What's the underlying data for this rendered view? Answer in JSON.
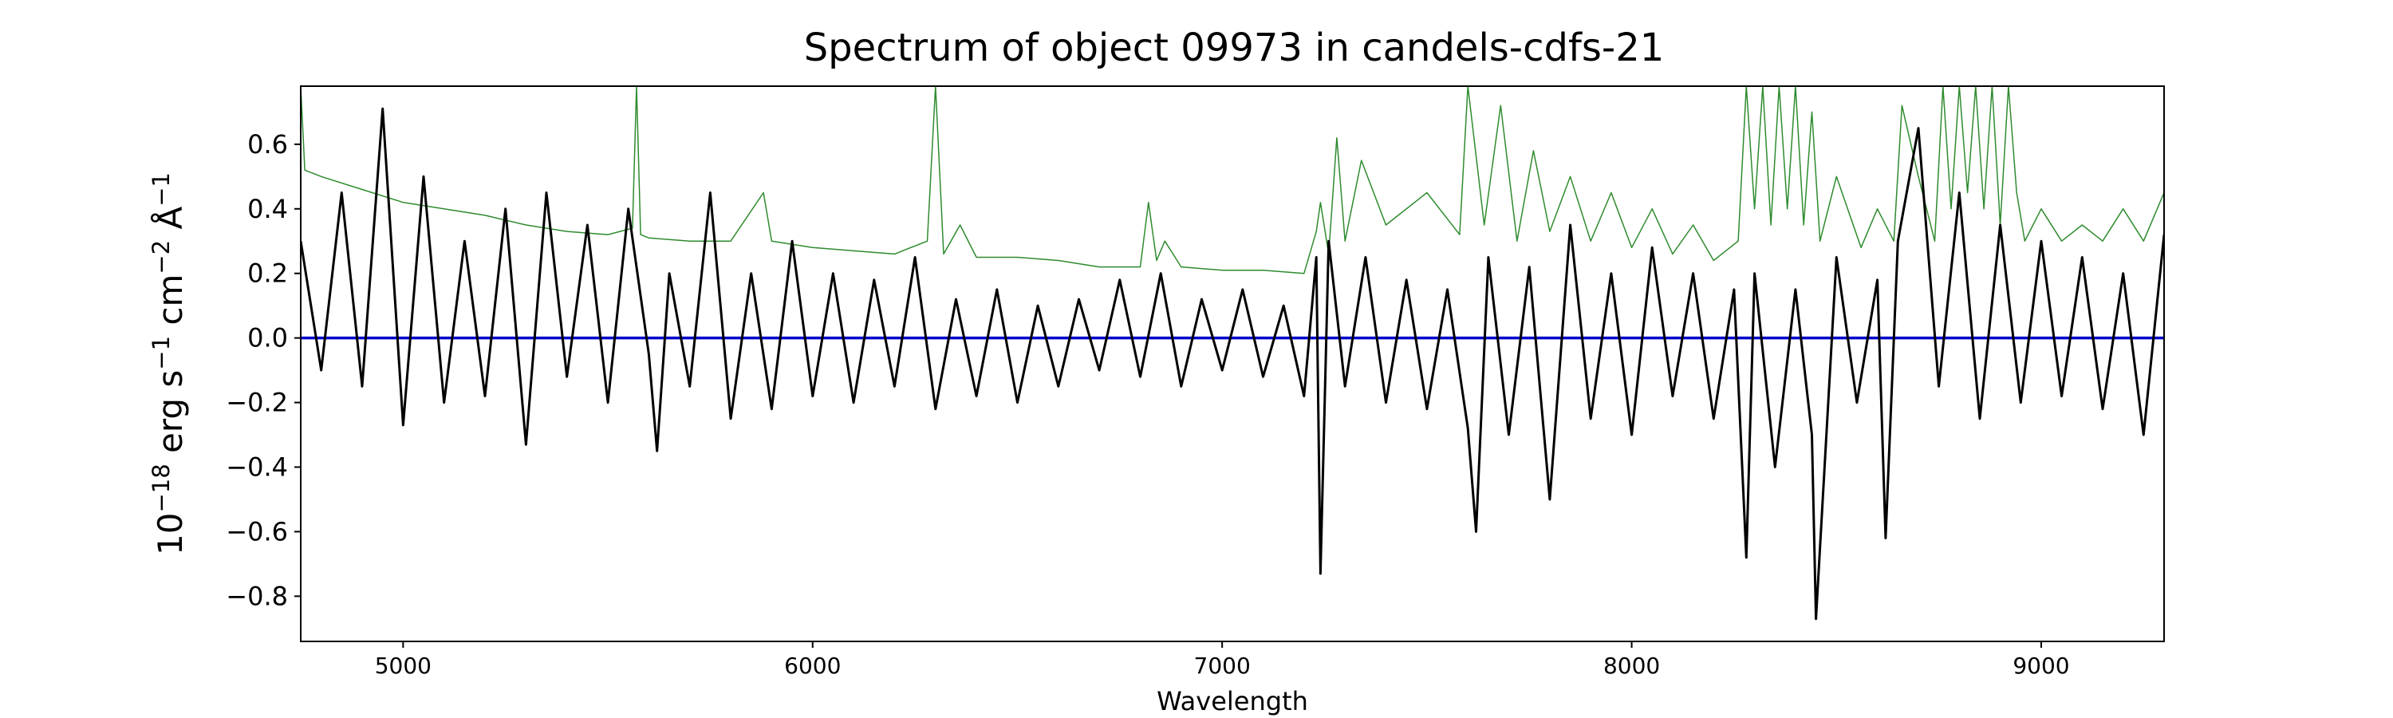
{
  "chart_data": {
    "type": "line",
    "title": "Spectrum of object 09973 in candels-cdfs-21",
    "xlabel": "Wavelength",
    "ylabel_parts": {
      "base": "10",
      "exp1": "−18",
      "unit1": " erg s",
      "exp2": "−1",
      "unit2": " cm",
      "exp3": "−2",
      "unit3": " Å",
      "exp4": "−1"
    },
    "xlim": [
      4750,
      9300
    ],
    "ylim": [
      -0.94,
      0.78
    ],
    "xticks": [
      5000,
      6000,
      7000,
      8000,
      9000
    ],
    "xtick_labels": [
      "5000",
      "6000",
      "7000",
      "8000",
      "9000"
    ],
    "yticks": [
      -0.8,
      -0.6,
      -0.4,
      -0.2,
      0.0,
      0.2,
      0.4,
      0.6
    ],
    "ytick_labels": [
      "−0.8",
      "−0.6",
      "−0.4",
      "−0.2",
      "0.0",
      "0.2",
      "0.4",
      "0.6"
    ],
    "grid": false,
    "series": [
      {
        "role": "zero-line",
        "color": "#0000cc",
        "x": [
          4750,
          9300
        ],
        "y": [
          0.0,
          0.0
        ]
      },
      {
        "role": "noise",
        "color": "#2e8b2e",
        "x": [
          4750,
          4760,
          4800,
          4900,
          5000,
          5200,
          5300,
          5400,
          5500,
          5560,
          5570,
          5580,
          5600,
          5700,
          5800,
          5880,
          5900,
          6000,
          6100,
          6200,
          6280,
          6300,
          6320,
          6360,
          6400,
          6500,
          6600,
          6700,
          6800,
          6820,
          6840,
          6860,
          6880,
          6900,
          7000,
          7100,
          7200,
          7230,
          7240,
          7260,
          7280,
          7300,
          7340,
          7400,
          7500,
          7580,
          7600,
          7640,
          7680,
          7720,
          7760,
          7800,
          7850,
          7900,
          7950,
          8000,
          8050,
          8100,
          8150,
          8200,
          8260,
          8280,
          8300,
          8320,
          8340,
          8360,
          8380,
          8400,
          8420,
          8440,
          8460,
          8500,
          8560,
          8600,
          8640,
          8660,
          8700,
          8740,
          8760,
          8780,
          8800,
          8820,
          8840,
          8860,
          8880,
          8900,
          8920,
          8940,
          8960,
          9000,
          9050,
          9100,
          9150,
          9200,
          9250,
          9300
        ],
        "y": [
          0.78,
          0.52,
          0.5,
          0.46,
          0.42,
          0.38,
          0.35,
          0.33,
          0.32,
          0.34,
          0.78,
          0.32,
          0.31,
          0.3,
          0.3,
          0.45,
          0.3,
          0.28,
          0.27,
          0.26,
          0.3,
          0.78,
          0.26,
          0.35,
          0.25,
          0.25,
          0.24,
          0.22,
          0.22,
          0.42,
          0.24,
          0.3,
          0.26,
          0.22,
          0.21,
          0.21,
          0.2,
          0.33,
          0.42,
          0.26,
          0.62,
          0.3,
          0.55,
          0.35,
          0.45,
          0.32,
          0.78,
          0.35,
          0.72,
          0.3,
          0.58,
          0.33,
          0.5,
          0.3,
          0.45,
          0.28,
          0.4,
          0.26,
          0.35,
          0.24,
          0.3,
          0.78,
          0.4,
          0.78,
          0.35,
          0.78,
          0.4,
          0.78,
          0.35,
          0.7,
          0.3,
          0.5,
          0.28,
          0.4,
          0.3,
          0.72,
          0.5,
          0.3,
          0.78,
          0.4,
          0.78,
          0.45,
          0.78,
          0.4,
          0.78,
          0.35,
          0.78,
          0.45,
          0.3,
          0.4,
          0.3,
          0.35,
          0.3,
          0.4,
          0.3,
          0.45
        ]
      },
      {
        "role": "flux",
        "color": "#000000",
        "x": [
          4750,
          4800,
          4850,
          4900,
          4950,
          5000,
          5050,
          5100,
          5150,
          5200,
          5250,
          5300,
          5350,
          5400,
          5450,
          5500,
          5550,
          5600,
          5620,
          5650,
          5700,
          5750,
          5800,
          5850,
          5900,
          5950,
          6000,
          6050,
          6100,
          6150,
          6200,
          6250,
          6300,
          6350,
          6400,
          6450,
          6500,
          6550,
          6600,
          6650,
          6700,
          6750,
          6800,
          6850,
          6900,
          6950,
          7000,
          7050,
          7100,
          7150,
          7200,
          7230,
          7240,
          7260,
          7300,
          7350,
          7400,
          7450,
          7500,
          7550,
          7600,
          7620,
          7650,
          7700,
          7750,
          7800,
          7850,
          7900,
          7950,
          8000,
          8050,
          8100,
          8150,
          8200,
          8250,
          8280,
          8300,
          8350,
          8400,
          8440,
          8450,
          8500,
          8550,
          8600,
          8620,
          8650,
          8700,
          8750,
          8800,
          8850,
          8900,
          8950,
          9000,
          9050,
          9100,
          9150,
          9200,
          9250,
          9300
        ],
        "y": [
          0.3,
          -0.1,
          0.45,
          -0.15,
          0.71,
          -0.27,
          0.5,
          -0.2,
          0.3,
          -0.18,
          0.4,
          -0.33,
          0.45,
          -0.12,
          0.35,
          -0.2,
          0.4,
          -0.05,
          -0.35,
          0.2,
          -0.15,
          0.45,
          -0.25,
          0.2,
          -0.22,
          0.3,
          -0.18,
          0.2,
          -0.2,
          0.18,
          -0.15,
          0.25,
          -0.22,
          0.12,
          -0.18,
          0.15,
          -0.2,
          0.1,
          -0.15,
          0.12,
          -0.1,
          0.18,
          -0.12,
          0.2,
          -0.15,
          0.12,
          -0.1,
          0.15,
          -0.12,
          0.1,
          -0.18,
          0.25,
          -0.73,
          0.3,
          -0.15,
          0.25,
          -0.2,
          0.18,
          -0.22,
          0.15,
          -0.28,
          -0.6,
          0.25,
          -0.3,
          0.22,
          -0.5,
          0.35,
          -0.25,
          0.2,
          -0.3,
          0.28,
          -0.18,
          0.2,
          -0.25,
          0.15,
          -0.68,
          0.2,
          -0.4,
          0.15,
          -0.3,
          -0.87,
          0.25,
          -0.2,
          0.18,
          -0.62,
          0.3,
          0.65,
          -0.15,
          0.45,
          -0.25,
          0.35,
          -0.2,
          0.3,
          -0.18,
          0.25,
          -0.22,
          0.2,
          -0.3,
          0.32
        ]
      }
    ]
  }
}
